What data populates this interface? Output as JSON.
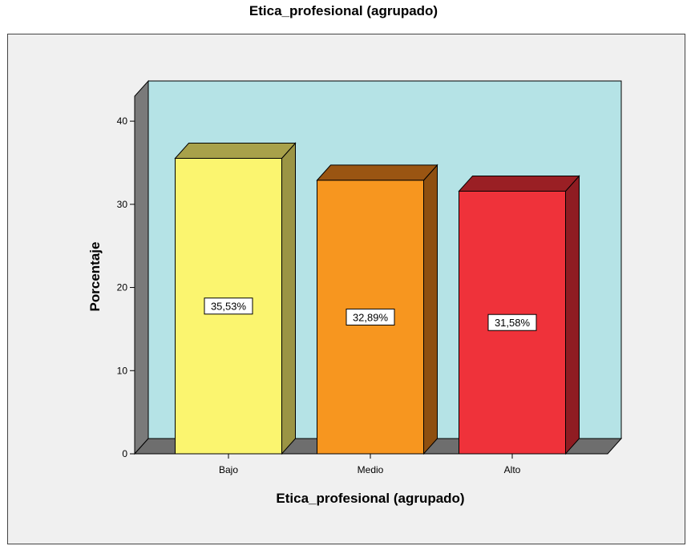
{
  "chart_data": {
    "type": "bar",
    "title": "Etica_profesional (agrupado)",
    "xlabel": "Etica_profesional (agrupado)",
    "ylabel": "Porcentaje",
    "categories": [
      "Bajo",
      "Medio",
      "Alto"
    ],
    "values": [
      35.53,
      32.89,
      31.58
    ],
    "data_labels": [
      "35,53%",
      "32,89%",
      "31,58%"
    ],
    "ylim": [
      0,
      43
    ],
    "yticks": [
      0,
      10,
      20,
      30,
      40
    ],
    "ytick_labels": [
      "0",
      "10",
      "20",
      "30",
      "40"
    ],
    "grid": false,
    "style": "3d",
    "colors": {
      "wall": "#b5e3e6",
      "floor": "#6e6e6e",
      "side_wall": "#7a7a7a",
      "bars": [
        {
          "front": "#fbf56f",
          "top": "#a8a14a",
          "side": "#9b9444"
        },
        {
          "front": "#f7961f",
          "top": "#9a5512",
          "side": "#8e4f10"
        },
        {
          "front": "#ef323a",
          "top": "#9a1f24",
          "side": "#8f1c22"
        }
      ]
    }
  }
}
